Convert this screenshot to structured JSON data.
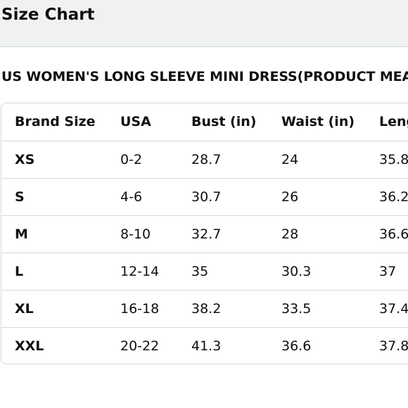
{
  "header": {
    "title": "Size Chart"
  },
  "product": {
    "heading": "US WOMEN'S LONG SLEEVE MINI DRESS(PRODUCT MEA"
  },
  "table": {
    "columns": [
      "Brand Size",
      "USA",
      "Bust (in)",
      "Waist (in)",
      "Leng"
    ],
    "rows": [
      [
        "XS",
        "0-2",
        "28.7",
        "24",
        "35.8"
      ],
      [
        "S",
        "4-6",
        "30.7",
        "26",
        "36.2"
      ],
      [
        "M",
        "8-10",
        "32.7",
        "28",
        "36.6"
      ],
      [
        "L",
        "12-14",
        "35",
        "30.3",
        "37"
      ],
      [
        "XL",
        "16-18",
        "38.2",
        "33.5",
        "37.4"
      ],
      [
        "XXL",
        "20-22",
        "41.3",
        "36.6",
        "37.8"
      ]
    ]
  }
}
